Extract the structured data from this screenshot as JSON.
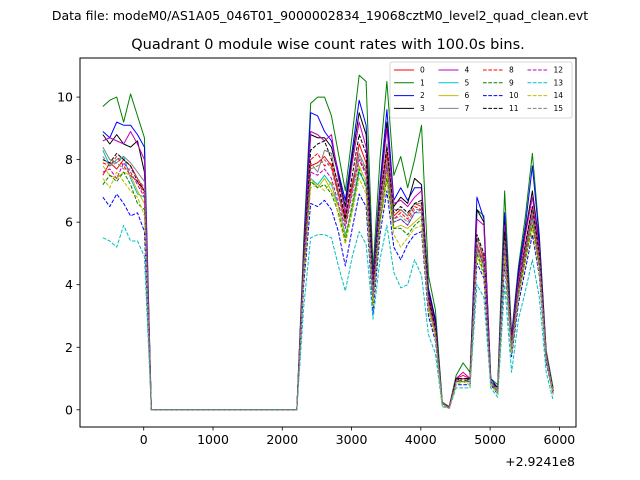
{
  "header": {
    "data_file": "Data file: modeM0/AS1A05_046T01_9000002834_19068cztM0_level2_quad_clean.evt"
  },
  "chart_data": {
    "type": "line",
    "title": "Quadrant 0 module wise count rates with 100.0s bins.",
    "xlabel": "",
    "ylabel": "",
    "offset_label": "+2.9241e8",
    "xlim": [
      -920,
      6240
    ],
    "ylim": [
      -0.55,
      11.25
    ],
    "xticks": [
      0,
      1000,
      2000,
      3000,
      4000,
      5000,
      6000
    ],
    "yticks": [
      0,
      2,
      4,
      6,
      8,
      10
    ],
    "legend_position": "top-right",
    "x": [
      -590,
      -490,
      -390,
      -290,
      -190,
      -90,
      10,
      110,
      210,
      310,
      410,
      510,
      610,
      710,
      810,
      910,
      1010,
      1110,
      1210,
      1310,
      1410,
      1510,
      1610,
      1710,
      1810,
      1910,
      2010,
      2110,
      2210,
      2310,
      2410,
      2510,
      2610,
      2710,
      2810,
      2910,
      3010,
      3110,
      3210,
      3310,
      3410,
      3510,
      3610,
      3710,
      3810,
      3910,
      4010,
      4110,
      4210,
      4310,
      4410,
      4510,
      4610,
      4710,
      4810,
      4910,
      5010,
      5110,
      5210,
      5310,
      5410,
      5510,
      5610,
      5710,
      5810,
      5910
    ],
    "series": [
      {
        "name": "0",
        "color": "#ff0000",
        "dash": "solid",
        "values": [
          7.5,
          7.9,
          7.7,
          8.0,
          7.8,
          7.4,
          7.0,
          0,
          0,
          0,
          0,
          0,
          0,
          0,
          0,
          0,
          0,
          0,
          0,
          0,
          0,
          0,
          0,
          0,
          0,
          0,
          0,
          0,
          0,
          4.5,
          7.8,
          7.9,
          8.1,
          7.8,
          6.9,
          6.2,
          7.1,
          8.5,
          7.9,
          3.8,
          6.6,
          8.2,
          6.2,
          6.4,
          6.2,
          6.6,
          6.5,
          3.6,
          2.6,
          0.2,
          0.05,
          1.0,
          1.1,
          1.0,
          5.5,
          4.8,
          0.9,
          0.6,
          5.6,
          2.1,
          4.0,
          5.3,
          6.5,
          5.0,
          1.7,
          0.6
        ]
      },
      {
        "name": "1",
        "color": "#008000",
        "dash": "solid",
        "values": [
          9.7,
          9.9,
          10.0,
          9.2,
          10.1,
          9.4,
          8.7,
          0,
          0,
          0,
          0,
          0,
          0,
          0,
          0,
          0,
          0,
          0,
          0,
          0,
          0,
          0,
          0,
          0,
          0,
          0,
          0,
          0,
          0,
          5.4,
          9.8,
          10.0,
          10.0,
          9.4,
          8.2,
          7.0,
          8.8,
          10.7,
          10.5,
          4.5,
          8.0,
          10.5,
          7.5,
          8.1,
          7.1,
          8.0,
          9.1,
          4.3,
          3.2,
          0.25,
          0.1,
          1.1,
          1.5,
          1.2,
          6.4,
          6.2,
          1.0,
          0.8,
          7.0,
          2.4,
          4.6,
          6.2,
          8.2,
          5.6,
          1.9,
          0.7
        ]
      },
      {
        "name": "2",
        "color": "#0000ff",
        "dash": "solid",
        "values": [
          8.9,
          8.7,
          9.2,
          9.1,
          9.1,
          8.8,
          8.4,
          0,
          0,
          0,
          0,
          0,
          0,
          0,
          0,
          0,
          0,
          0,
          0,
          0,
          0,
          0,
          0,
          0,
          0,
          0,
          0,
          0,
          0,
          5.1,
          9.5,
          9.4,
          8.9,
          8.6,
          7.6,
          6.7,
          8.3,
          9.9,
          9.1,
          4.2,
          7.2,
          9.6,
          6.7,
          7.1,
          6.7,
          7.1,
          7.1,
          3.9,
          2.9,
          0.2,
          0.1,
          1.0,
          1.0,
          1.0,
          6.8,
          6.1,
          1.0,
          0.7,
          6.3,
          2.3,
          4.5,
          5.9,
          7.8,
          5.5,
          1.8,
          0.6
        ]
      },
      {
        "name": "3",
        "color": "#000000",
        "dash": "solid",
        "values": [
          8.8,
          8.5,
          8.8,
          8.5,
          8.4,
          8.6,
          7.6,
          0,
          0,
          0,
          0,
          0,
          0,
          0,
          0,
          0,
          0,
          0,
          0,
          0,
          0,
          0,
          0,
          0,
          0,
          0,
          0,
          0,
          0,
          5.0,
          8.8,
          8.7,
          8.7,
          8.4,
          7.5,
          6.5,
          8.1,
          9.5,
          8.8,
          4.1,
          7.0,
          9.2,
          6.5,
          6.8,
          6.6,
          7.4,
          7.2,
          3.8,
          2.8,
          0.2,
          0.1,
          1.0,
          0.9,
          1.0,
          6.4,
          6.0,
          0.9,
          0.7,
          6.0,
          2.2,
          4.3,
          5.7,
          7.0,
          5.3,
          1.8,
          0.6
        ]
      },
      {
        "name": "4",
        "color": "#bf00bf",
        "dash": "solid",
        "values": [
          8.6,
          8.7,
          8.6,
          8.5,
          8.9,
          8.5,
          8.0,
          0,
          0,
          0,
          0,
          0,
          0,
          0,
          0,
          0,
          0,
          0,
          0,
          0,
          0,
          0,
          0,
          0,
          0,
          0,
          0,
          0,
          0,
          4.9,
          8.9,
          8.8,
          8.6,
          8.8,
          7.4,
          6.3,
          7.9,
          9.2,
          8.4,
          4.0,
          6.9,
          9.0,
          6.6,
          6.7,
          6.5,
          6.8,
          7.0,
          3.7,
          2.7,
          0.2,
          0.1,
          1.0,
          1.2,
          1.0,
          6.1,
          5.9,
          0.9,
          0.6,
          5.9,
          2.2,
          4.2,
          5.6,
          6.8,
          5.2,
          1.8,
          0.6
        ]
      },
      {
        "name": "5",
        "color": "#00bfbf",
        "dash": "solid",
        "values": [
          8.3,
          7.8,
          8.0,
          8.1,
          7.4,
          6.9,
          6.8,
          0,
          0,
          0,
          0,
          0,
          0,
          0,
          0,
          0,
          0,
          0,
          0,
          0,
          0,
          0,
          0,
          0,
          0,
          0,
          0,
          0,
          0,
          4.4,
          7.4,
          7.2,
          7.5,
          7.2,
          6.5,
          5.6,
          6.4,
          7.6,
          7.2,
          3.5,
          6.0,
          7.8,
          6.0,
          6.1,
          5.9,
          6.3,
          6.3,
          3.4,
          2.4,
          0.2,
          0.05,
          0.9,
          0.9,
          0.9,
          5.2,
          4.6,
          0.8,
          0.6,
          5.2,
          1.9,
          3.8,
          5.0,
          6.1,
          4.7,
          1.6,
          0.5
        ]
      },
      {
        "name": "6",
        "color": "#bfbf00",
        "dash": "solid",
        "values": [
          7.8,
          7.5,
          7.4,
          7.6,
          7.5,
          7.0,
          6.6,
          0,
          0,
          0,
          0,
          0,
          0,
          0,
          0,
          0,
          0,
          0,
          0,
          0,
          0,
          0,
          0,
          0,
          0,
          0,
          0,
          0,
          0,
          4.3,
          7.4,
          7.1,
          7.4,
          7.0,
          6.5,
          5.5,
          6.5,
          7.8,
          7.3,
          3.5,
          6.1,
          7.6,
          5.8,
          5.9,
          5.8,
          6.0,
          6.2,
          3.3,
          2.4,
          0.2,
          0.05,
          0.9,
          0.9,
          0.9,
          5.1,
          4.5,
          0.8,
          0.6,
          5.1,
          1.9,
          3.7,
          4.9,
          6.0,
          4.6,
          1.6,
          0.5
        ]
      },
      {
        "name": "7",
        "color": "#808080",
        "dash": "solid",
        "values": [
          8.4,
          8.0,
          7.9,
          8.1,
          7.9,
          7.6,
          7.3,
          0,
          0,
          0,
          0,
          0,
          0,
          0,
          0,
          0,
          0,
          0,
          0,
          0,
          0,
          0,
          0,
          0,
          0,
          0,
          0,
          0,
          0,
          4.7,
          7.9,
          7.6,
          8.3,
          8.2,
          7.0,
          6.0,
          7.3,
          8.2,
          7.7,
          3.7,
          6.6,
          8.5,
          6.4,
          6.4,
          6.2,
          6.6,
          6.6,
          3.5,
          2.5,
          0.2,
          0.05,
          0.9,
          1.0,
          0.9,
          5.5,
          4.9,
          0.9,
          0.6,
          5.5,
          2.0,
          4.0,
          5.2,
          6.4,
          4.9,
          1.7,
          0.6
        ]
      },
      {
        "name": "8",
        "color": "#ff0000",
        "dash": "dashed",
        "values": [
          7.9,
          7.8,
          8.1,
          7.8,
          7.5,
          7.3,
          6.9,
          0,
          0,
          0,
          0,
          0,
          0,
          0,
          0,
          0,
          0,
          0,
          0,
          0,
          0,
          0,
          0,
          0,
          0,
          0,
          0,
          0,
          0,
          4.6,
          8.0,
          8.2,
          7.8,
          7.9,
          6.9,
          6.0,
          7.2,
          8.0,
          7.6,
          3.7,
          6.4,
          7.9,
          6.1,
          6.3,
          6.1,
          6.5,
          6.4,
          3.5,
          2.5,
          0.2,
          0.05,
          0.9,
          1.0,
          0.9,
          5.3,
          4.7,
          0.9,
          0.6,
          5.4,
          2.0,
          3.9,
          5.1,
          6.3,
          4.8,
          1.7,
          0.6
        ]
      },
      {
        "name": "9",
        "color": "#008000",
        "dash": "dashed",
        "values": [
          7.2,
          7.5,
          7.3,
          7.6,
          7.2,
          6.6,
          6.4,
          0,
          0,
          0,
          0,
          0,
          0,
          0,
          0,
          0,
          0,
          0,
          0,
          0,
          0,
          0,
          0,
          0,
          0,
          0,
          0,
          0,
          0,
          4.3,
          7.3,
          7.1,
          7.2,
          6.9,
          6.3,
          5.4,
          6.6,
          7.7,
          7.1,
          3.4,
          6.0,
          7.4,
          5.8,
          5.8,
          5.6,
          5.9,
          6.1,
          3.2,
          2.3,
          0.2,
          0.05,
          0.9,
          0.9,
          0.9,
          5.0,
          4.4,
          0.8,
          0.6,
          5.0,
          1.8,
          3.6,
          4.8,
          5.9,
          4.5,
          1.6,
          0.5
        ]
      },
      {
        "name": "10",
        "color": "#0000ff",
        "dash": "dashed",
        "values": [
          6.8,
          6.5,
          6.9,
          6.6,
          6.2,
          6.3,
          5.7,
          0,
          0,
          0,
          0,
          0,
          0,
          0,
          0,
          0,
          0,
          0,
          0,
          0,
          0,
          0,
          0,
          0,
          0,
          0,
          0,
          0,
          0,
          4.0,
          6.6,
          6.5,
          6.7,
          6.4,
          5.7,
          4.6,
          5.8,
          6.9,
          6.5,
          3.1,
          5.6,
          7.0,
          5.2,
          4.8,
          5.3,
          5.6,
          5.7,
          3.0,
          2.2,
          0.15,
          0.05,
          0.8,
          0.8,
          0.8,
          4.7,
          4.2,
          0.8,
          0.5,
          4.7,
          1.7,
          3.4,
          4.5,
          5.6,
          4.3,
          1.5,
          0.5
        ]
      },
      {
        "name": "11",
        "color": "#000000",
        "dash": "dashed",
        "values": [
          8.0,
          7.9,
          8.2,
          8.0,
          7.8,
          7.3,
          7.0,
          0,
          0,
          0,
          0,
          0,
          0,
          0,
          0,
          0,
          0,
          0,
          0,
          0,
          0,
          0,
          0,
          0,
          0,
          0,
          0,
          0,
          0,
          4.7,
          8.3,
          8.5,
          8.6,
          8.0,
          7.2,
          6.1,
          7.5,
          8.8,
          8.2,
          3.8,
          6.7,
          8.4,
          6.3,
          6.5,
          6.3,
          6.6,
          6.7,
          3.6,
          2.6,
          0.2,
          0.05,
          1.0,
          1.0,
          1.0,
          5.6,
          5.0,
          0.9,
          0.6,
          5.7,
          2.1,
          4.0,
          5.3,
          6.5,
          5.0,
          1.7,
          0.6
        ]
      },
      {
        "name": "12",
        "color": "#bf00bf",
        "dash": "dashed",
        "values": [
          7.6,
          7.7,
          7.4,
          7.9,
          7.6,
          7.2,
          6.8,
          0,
          0,
          0,
          0,
          0,
          0,
          0,
          0,
          0,
          0,
          0,
          0,
          0,
          0,
          0,
          0,
          0,
          0,
          0,
          0,
          0,
          0,
          4.5,
          7.6,
          7.5,
          7.7,
          7.4,
          6.6,
          5.8,
          6.9,
          8.0,
          7.5,
          3.6,
          6.3,
          7.8,
          6.0,
          6.1,
          5.9,
          6.3,
          6.4,
          3.4,
          2.5,
          0.2,
          0.05,
          0.9,
          1.0,
          0.9,
          5.2,
          4.6,
          0.9,
          0.6,
          5.3,
          1.9,
          3.8,
          5.0,
          6.2,
          4.7,
          1.7,
          0.5
        ]
      },
      {
        "name": "13",
        "color": "#00bfbf",
        "dash": "dashed",
        "values": [
          5.5,
          5.4,
          5.2,
          5.9,
          5.4,
          5.4,
          4.9,
          0,
          0,
          0,
          0,
          0,
          0,
          0,
          0,
          0,
          0,
          0,
          0,
          0,
          0,
          0,
          0,
          0,
          0,
          0,
          0,
          0,
          0,
          3.3,
          5.5,
          5.6,
          5.6,
          5.5,
          4.6,
          3.8,
          4.9,
          5.7,
          5.3,
          2.9,
          4.8,
          5.9,
          4.4,
          3.9,
          4.0,
          4.8,
          4.3,
          2.4,
          1.8,
          0.1,
          0.05,
          0.7,
          0.7,
          0.7,
          4.0,
          3.6,
          0.7,
          0.4,
          4.0,
          1.2,
          2.9,
          3.8,
          4.8,
          3.6,
          1.2,
          0.3
        ]
      },
      {
        "name": "14",
        "color": "#bfbf00",
        "dash": "dashed",
        "values": [
          7.4,
          7.1,
          7.6,
          7.3,
          7.0,
          6.8,
          6.2,
          0,
          0,
          0,
          0,
          0,
          0,
          0,
          0,
          0,
          0,
          0,
          0,
          0,
          0,
          0,
          0,
          0,
          0,
          0,
          0,
          0,
          0,
          4.2,
          7.1,
          7.2,
          7.0,
          7.3,
          6.2,
          5.3,
          6.3,
          7.4,
          6.9,
          3.3,
          5.9,
          7.3,
          5.6,
          5.2,
          5.5,
          5.8,
          5.9,
          3.2,
          2.3,
          0.15,
          0.05,
          0.8,
          0.9,
          0.8,
          4.9,
          4.3,
          0.8,
          0.5,
          4.9,
          1.8,
          3.6,
          4.7,
          5.8,
          4.4,
          1.6,
          0.5
        ]
      },
      {
        "name": "15",
        "color": "#808080",
        "dash": "dashed",
        "values": [
          8.1,
          7.8,
          7.9,
          7.7,
          7.7,
          7.4,
          7.1,
          0,
          0,
          0,
          0,
          0,
          0,
          0,
          0,
          0,
          0,
          0,
          0,
          0,
          0,
          0,
          0,
          0,
          0,
          0,
          0,
          0,
          0,
          4.6,
          7.7,
          7.8,
          8.0,
          7.7,
          6.8,
          5.9,
          7.0,
          8.1,
          7.6,
          3.6,
          6.4,
          8.0,
          6.1,
          6.2,
          6.0,
          6.4,
          6.4,
          3.4,
          2.5,
          0.2,
          0.05,
          0.9,
          1.0,
          0.9,
          5.3,
          4.7,
          0.9,
          0.6,
          5.4,
          2.0,
          3.9,
          5.1,
          6.3,
          4.8,
          1.7,
          0.6
        ]
      }
    ]
  }
}
